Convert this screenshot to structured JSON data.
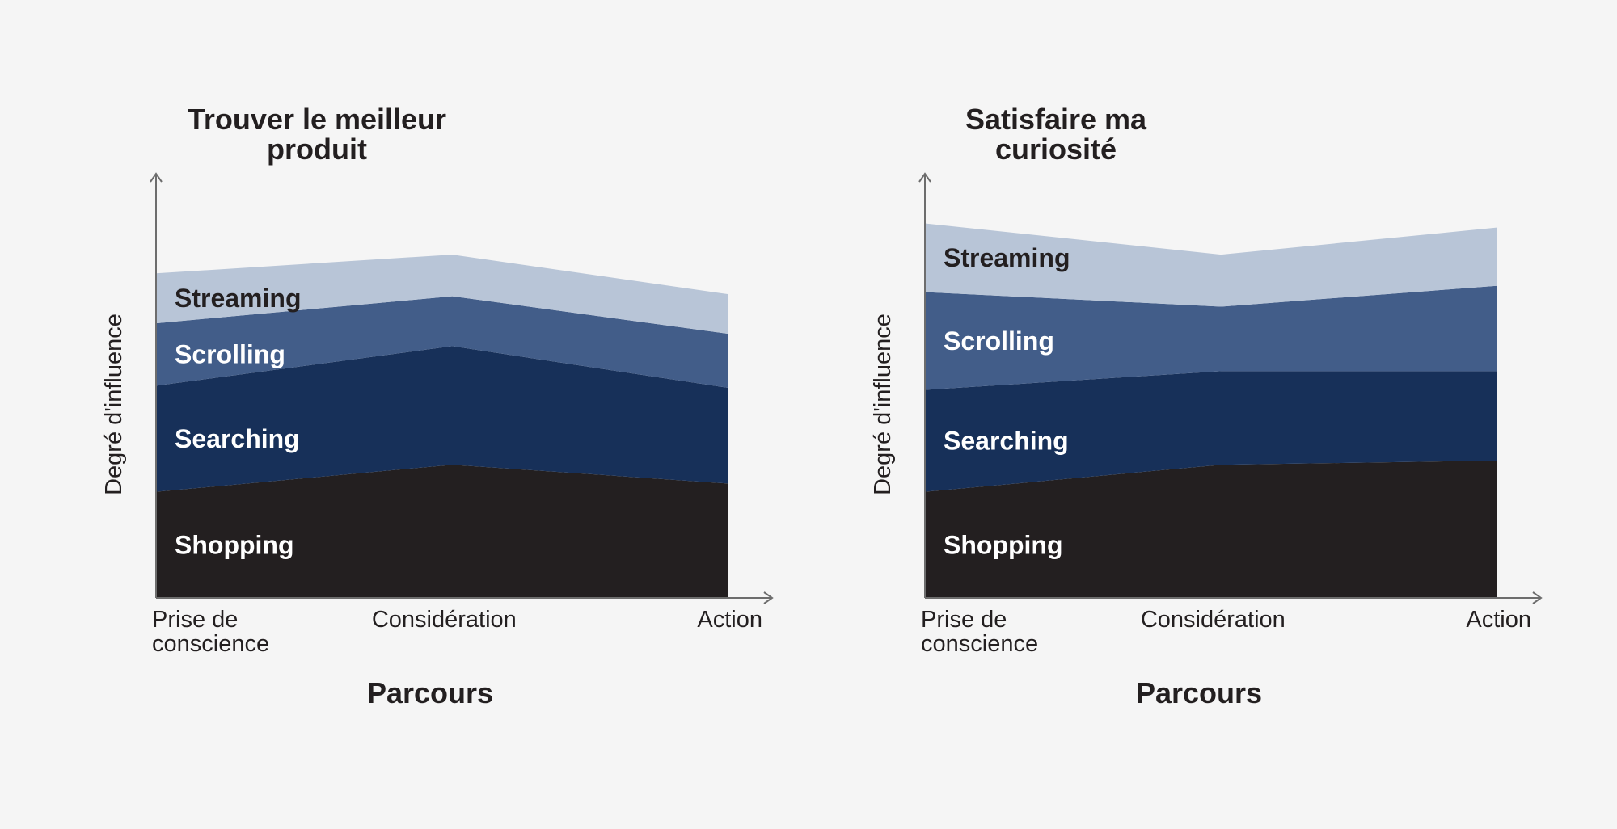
{
  "colors": {
    "background": "#f5f5f5",
    "text": "#231f20",
    "axis": "#6d6d6d",
    "Shopping": "#231f20",
    "Searching": "#173059",
    "Scrolling": "#425d89",
    "Streaming": "#b8c5d7",
    "label_on_dark": "#ffffff",
    "label_on_light": "#231f20"
  },
  "chart_data": [
    {
      "type": "area",
      "stacked": true,
      "title": [
        "Trouver le meilleur",
        "produit"
      ],
      "xlabel": "Parcours",
      "ylabel": "Degré d'influence",
      "categories": [
        [
          "Prise de",
          "conscience"
        ],
        [
          "Considération"
        ],
        [
          "Action"
        ]
      ],
      "x": [
        0,
        1,
        1.93
      ],
      "ylim": [
        0,
        100
      ],
      "series": [
        {
          "name": "Shopping",
          "values": [
            25.5,
            32,
            27.5
          ]
        },
        {
          "name": "Searching",
          "values": [
            25.5,
            28.5,
            23
          ]
        },
        {
          "name": "Scrolling",
          "values": [
            15,
            12,
            13
          ]
        },
        {
          "name": "Streaming",
          "values": [
            12,
            10,
            9.5
          ]
        }
      ]
    },
    {
      "type": "area",
      "stacked": true,
      "title": [
        "Satisfaire ma",
        "curiosité"
      ],
      "xlabel": "Parcours",
      "ylabel": "Degré d'influence",
      "categories": [
        [
          "Prise de",
          "conscience"
        ],
        [
          "Considération"
        ],
        [
          "Action"
        ]
      ],
      "x": [
        0,
        1,
        1.93
      ],
      "ylim": [
        0,
        100
      ],
      "series": [
        {
          "name": "Shopping",
          "values": [
            25.5,
            32,
            33
          ]
        },
        {
          "name": "Searching",
          "values": [
            24.5,
            22.5,
            21.5
          ]
        },
        {
          "name": "Scrolling",
          "values": [
            23.5,
            15.5,
            20.5
          ]
        },
        {
          "name": "Streaming",
          "values": [
            16.5,
            12.5,
            14
          ]
        }
      ]
    }
  ]
}
